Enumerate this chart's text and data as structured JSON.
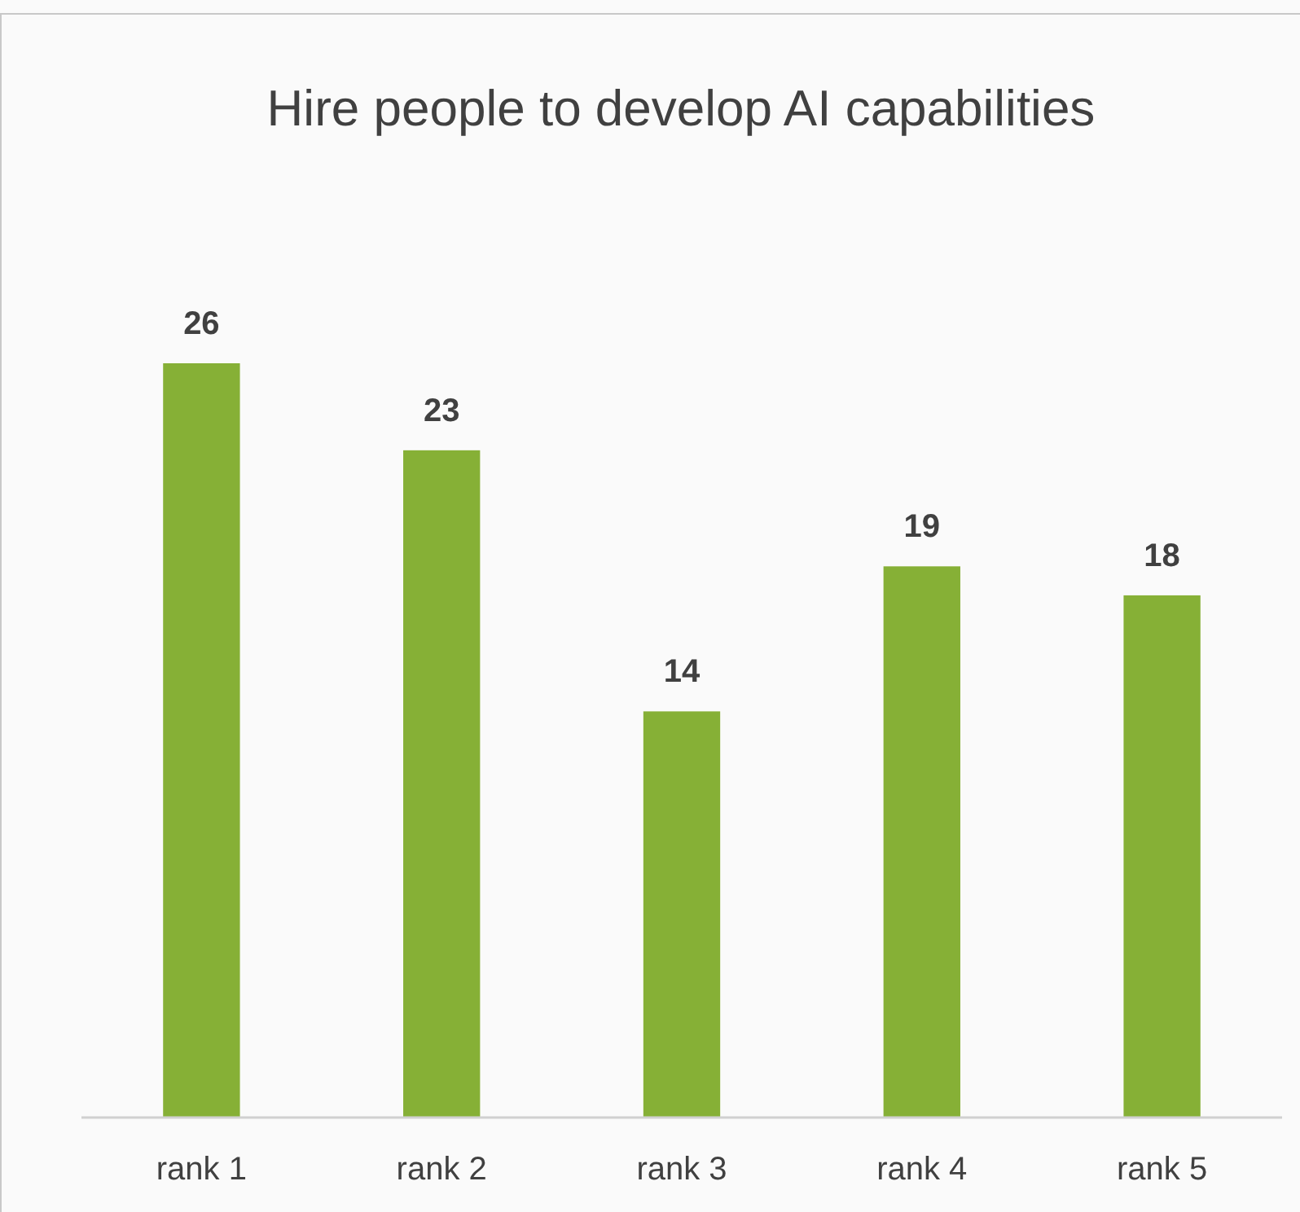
{
  "chart_data": {
    "type": "bar",
    "title": "Hire people to develop AI capabilities",
    "categories": [
      "rank 1",
      "rank 2",
      "rank 3",
      "rank 4",
      "rank 5"
    ],
    "values": [
      26,
      23,
      14,
      19,
      18
    ],
    "color": "#86b036",
    "data_labels": true
  }
}
